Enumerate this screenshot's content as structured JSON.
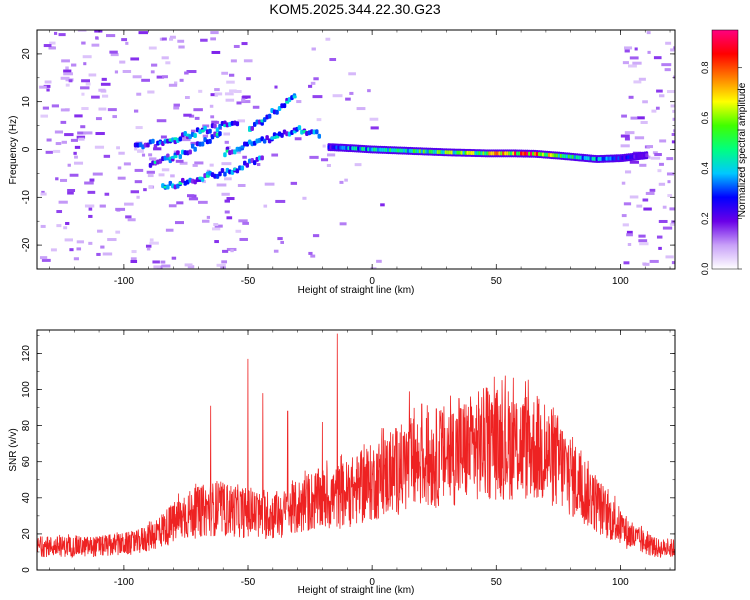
{
  "figure_title": "KOM5.2025.344.22.30.G23",
  "chart_data": [
    {
      "type": "heatmap",
      "name": "spectrogram",
      "xlabel": "Height of straight line (km)",
      "ylabel": "Frequency (Hz)",
      "xlim": [
        -135,
        122
      ],
      "ylim": [
        -25,
        25
      ],
      "x_ticks": [
        -100,
        -50,
        0,
        50,
        100
      ],
      "y_ticks": [
        -20,
        -10,
        0,
        10,
        20
      ],
      "x_tick_labels": [
        "-100",
        "-50",
        "0",
        "50",
        "100"
      ],
      "y_tick_labels": [
        "-20",
        "-10",
        "0",
        "10",
        "20"
      ],
      "colorbar": {
        "label": "Normalized spectral amplitude",
        "range": [
          0,
          0.95
        ],
        "ticks": [
          0.0,
          0.2,
          0.4,
          0.6,
          0.8
        ],
        "tick_labels": [
          "0.0",
          "0.2",
          "0.4",
          "0.6",
          "0.8"
        ],
        "colors": [
          "#ffffff",
          "#c8a0f8",
          "#6a00e8",
          "#0000ff",
          "#00c8ff",
          "#00ff80",
          "#40ff00",
          "#ffff00",
          "#ff8000",
          "#ff0000",
          "#ff0080"
        ]
      },
      "main_trace": [
        {
          "x": -18,
          "y": 0.5,
          "a": 0.3
        },
        {
          "x": -10,
          "y": 0.3,
          "a": 0.45
        },
        {
          "x": 0,
          "y": 0.0,
          "a": 0.55
        },
        {
          "x": 15,
          "y": -0.3,
          "a": 0.6
        },
        {
          "x": 30,
          "y": -0.6,
          "a": 0.65
        },
        {
          "x": 45,
          "y": -0.8,
          "a": 0.72
        },
        {
          "x": 55,
          "y": -0.8,
          "a": 0.9
        },
        {
          "x": 65,
          "y": -0.9,
          "a": 0.95
        },
        {
          "x": 75,
          "y": -1.3,
          "a": 0.6
        },
        {
          "x": 90,
          "y": -2.0,
          "a": 0.45
        },
        {
          "x": 100,
          "y": -1.8,
          "a": 0.35
        },
        {
          "x": 110,
          "y": -1.2,
          "a": 0.2
        }
      ],
      "branch_traces": [
        [
          {
            "x": -96,
            "y": 0.5
          },
          {
            "x": -85,
            "y": 1.5
          },
          {
            "x": -75,
            "y": 3.0
          },
          {
            "x": -65,
            "y": 4.5
          },
          {
            "x": -55,
            "y": 5.5
          }
        ],
        [
          {
            "x": -90,
            "y": -3.0
          },
          {
            "x": -80,
            "y": -1.5
          },
          {
            "x": -70,
            "y": 1.0
          },
          {
            "x": -62,
            "y": 3.5
          }
        ],
        [
          {
            "x": -60,
            "y": -0.5
          },
          {
            "x": -50,
            "y": 1.0
          },
          {
            "x": -40,
            "y": 2.5
          },
          {
            "x": -30,
            "y": 4.0
          },
          {
            "x": -22,
            "y": 3.0
          }
        ],
        [
          {
            "x": -85,
            "y": -8.0
          },
          {
            "x": -70,
            "y": -6.0
          },
          {
            "x": -55,
            "y": -4.0
          },
          {
            "x": -45,
            "y": -2.0
          }
        ],
        [
          {
            "x": -50,
            "y": 4.0
          },
          {
            "x": -40,
            "y": 8.0
          },
          {
            "x": -32,
            "y": 11.0
          }
        ]
      ]
    },
    {
      "type": "line",
      "name": "snr",
      "xlabel": "Height of straight line (km)",
      "ylabel": "SNR (v/v)",
      "xlim": [
        -135,
        122
      ],
      "ylim": [
        0,
        133
      ],
      "x_ticks": [
        -100,
        -50,
        0,
        50,
        100
      ],
      "y_ticks": [
        0,
        20,
        40,
        60,
        80,
        100,
        120
      ],
      "x_tick_labels": [
        "-100",
        "-50",
        "0",
        "50",
        "100"
      ],
      "y_tick_labels": [
        "0",
        "20",
        "40",
        "60",
        "80",
        "100",
        "120"
      ],
      "color": "#ee2222",
      "envelope": {
        "x": [
          -135,
          -110,
          -95,
          -85,
          -75,
          -65,
          -55,
          -45,
          -35,
          -25,
          -15,
          -5,
          5,
          15,
          25,
          35,
          45,
          55,
          65,
          75,
          85,
          95,
          105,
          115,
          122
        ],
        "y": [
          13,
          13,
          15,
          22,
          30,
          34,
          33,
          30,
          31,
          38,
          40,
          45,
          52,
          58,
          62,
          65,
          70,
          70,
          68,
          60,
          45,
          30,
          18,
          12,
          12
        ]
      },
      "peaks": [
        {
          "x": -65,
          "y": 91
        },
        {
          "x": -50,
          "y": 117
        },
        {
          "x": -44,
          "y": 98
        },
        {
          "x": -34,
          "y": 88
        },
        {
          "x": -20,
          "y": 82
        },
        {
          "x": -14,
          "y": 131
        },
        {
          "x": 15,
          "y": 99
        },
        {
          "x": 20,
          "y": 92
        },
        {
          "x": 35,
          "y": 95
        }
      ]
    }
  ]
}
